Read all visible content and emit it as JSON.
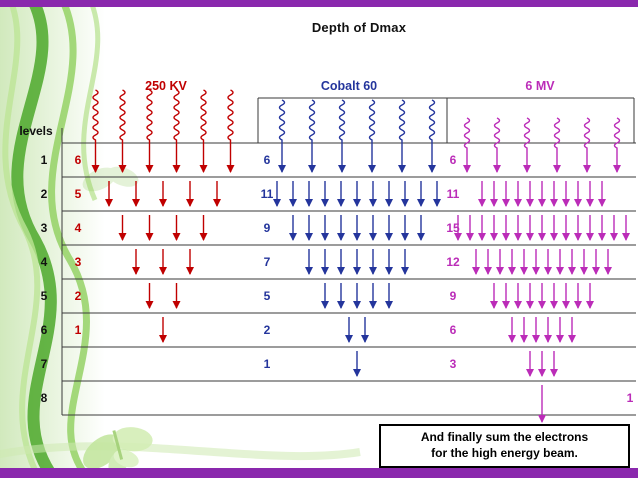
{
  "page": {
    "title": "Depth of Dmax"
  },
  "chart_data": {
    "type": "diagram",
    "title": "Depth of Dmax",
    "levels_label": "levels",
    "levels": [
      "1",
      "2",
      "3",
      "4",
      "5",
      "6",
      "7",
      "8"
    ],
    "series": [
      {
        "name": "250 KV",
        "color": "#c00000",
        "counts": [
          6,
          5,
          4,
          3,
          2,
          1,
          0,
          0
        ]
      },
      {
        "name": "Cobalt 60",
        "color": "#24359c",
        "counts": [
          6,
          11,
          9,
          7,
          5,
          2,
          1,
          0
        ]
      },
      {
        "name": "6 MV",
        "color": "#bb2cb8",
        "counts": [
          6,
          11,
          15,
          12,
          9,
          6,
          3,
          1
        ]
      }
    ],
    "note_line1": "And finally sum the electrons",
    "note_line2": "for the high energy beam."
  }
}
